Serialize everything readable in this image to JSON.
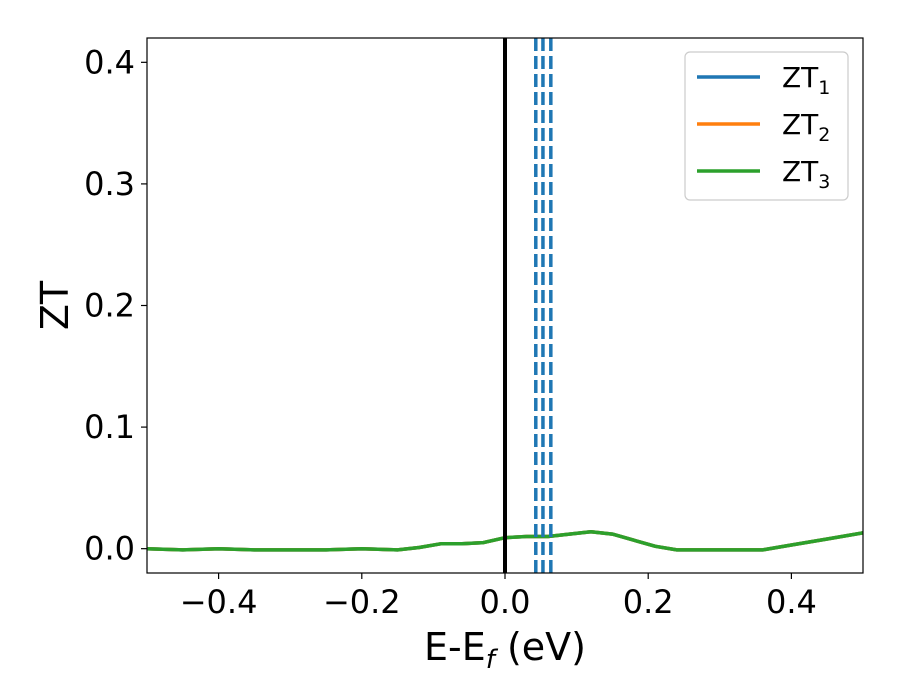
{
  "chart_data": {
    "type": "line",
    "xlabel": "E-E",
    "xlabel_sub": "f",
    "xlabel_unit": " (eV)",
    "ylabel": "ZT",
    "xlim": [
      -0.5,
      0.5
    ],
    "ylim": [
      -0.02,
      0.42
    ],
    "xticks": [
      -0.4,
      -0.2,
      0.0,
      0.2,
      0.4
    ],
    "xtick_labels": [
      "−0.4",
      "−0.2",
      "0.0",
      "0.2",
      "0.4"
    ],
    "yticks": [
      0.0,
      0.1,
      0.2,
      0.3,
      0.4
    ],
    "ytick_labels": [
      "0.0",
      "0.1",
      "0.2",
      "0.3",
      "0.4"
    ],
    "legend_position": "top-right",
    "series": [
      {
        "name": "ZT",
        "sub": "1",
        "color": "#1f77b4",
        "x": [
          -0.5,
          -0.45,
          -0.4,
          -0.35,
          -0.3,
          -0.25,
          -0.2,
          -0.15,
          -0.12,
          -0.09,
          -0.06,
          -0.03,
          0.0,
          0.03,
          0.06,
          0.09,
          0.12,
          0.15,
          0.18,
          0.21,
          0.24,
          0.28,
          0.32,
          0.36,
          0.4,
          0.45,
          0.5
        ],
        "y": [
          0.0,
          -0.001,
          0.0,
          -0.001,
          -0.001,
          -0.001,
          0.0,
          -0.001,
          0.001,
          0.004,
          0.004,
          0.005,
          0.009,
          0.01,
          0.01,
          0.012,
          0.014,
          0.012,
          0.007,
          0.002,
          -0.001,
          -0.001,
          -0.001,
          -0.001,
          0.003,
          0.008,
          0.013
        ]
      },
      {
        "name": "ZT",
        "sub": "2",
        "color": "#ff7f0e",
        "x": [
          -0.5,
          -0.45,
          -0.4,
          -0.35,
          -0.3,
          -0.25,
          -0.2,
          -0.15,
          -0.12,
          -0.09,
          -0.06,
          -0.03,
          0.0,
          0.03,
          0.06,
          0.09,
          0.12,
          0.15,
          0.18,
          0.21,
          0.24,
          0.28,
          0.32,
          0.36,
          0.4,
          0.45,
          0.5
        ],
        "y": [
          0.0,
          -0.001,
          0.0,
          -0.001,
          -0.001,
          -0.001,
          0.0,
          -0.001,
          0.001,
          0.004,
          0.004,
          0.005,
          0.009,
          0.01,
          0.01,
          0.012,
          0.014,
          0.012,
          0.007,
          0.002,
          -0.001,
          -0.001,
          -0.001,
          -0.001,
          0.003,
          0.008,
          0.013
        ]
      },
      {
        "name": "ZT",
        "sub": "3",
        "color": "#2ca02c",
        "x": [
          -0.5,
          -0.45,
          -0.4,
          -0.35,
          -0.3,
          -0.25,
          -0.2,
          -0.15,
          -0.12,
          -0.09,
          -0.06,
          -0.03,
          0.0,
          0.03,
          0.06,
          0.09,
          0.12,
          0.15,
          0.18,
          0.21,
          0.24,
          0.28,
          0.32,
          0.36,
          0.4,
          0.45,
          0.5
        ],
        "y": [
          0.0,
          -0.001,
          0.0,
          -0.001,
          -0.001,
          -0.001,
          0.0,
          -0.001,
          0.001,
          0.004,
          0.004,
          0.005,
          0.009,
          0.01,
          0.01,
          0.012,
          0.014,
          0.012,
          0.007,
          0.002,
          -0.001,
          -0.001,
          -0.001,
          -0.001,
          0.003,
          0.008,
          0.013
        ]
      }
    ],
    "vlines": [
      {
        "x": 0.0,
        "color": "#000000",
        "style": "solid"
      },
      {
        "x": 0.043,
        "color": "#1f77b4",
        "style": "dashed"
      },
      {
        "x": 0.053,
        "color": "#1f77b4",
        "style": "dashed"
      },
      {
        "x": 0.064,
        "color": "#1f77b4",
        "style": "dashed"
      }
    ]
  }
}
